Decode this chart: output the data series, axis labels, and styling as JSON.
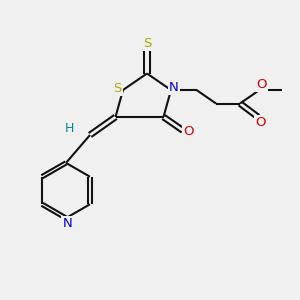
{
  "bg_color": "#f0f0f0",
  "S_color": "#aaaa00",
  "N_color": "#0000cc",
  "O_color": "#cc0000",
  "H_color": "#008888",
  "bond_color": "#111111",
  "lw": 1.5,
  "figsize": [
    3.0,
    3.0
  ],
  "dpi": 100,
  "xlim": [
    0,
    10
  ],
  "ylim": [
    0,
    10
  ]
}
